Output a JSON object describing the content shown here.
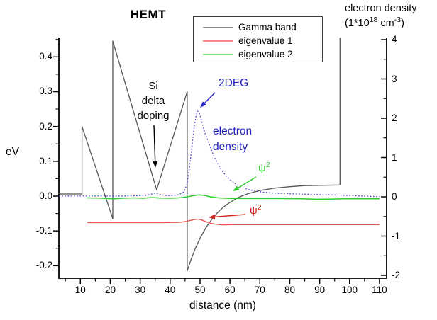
{
  "chart_data": {
    "type": "line",
    "title": "HEMT",
    "axes": {
      "bottom": {
        "label": "distance (nm)",
        "range": [
          2.8,
          112.4
        ],
        "major_ticks": [
          10,
          20,
          30,
          40,
          50,
          60,
          70,
          80,
          90,
          100,
          110
        ],
        "tick_labels": [
          "10",
          "20",
          "30",
          "40",
          "50",
          "60",
          "70",
          "80",
          "90",
          "100",
          "110"
        ]
      },
      "left": {
        "label": "eV",
        "range": [
          -0.236,
          0.456
        ],
        "major_ticks": [
          0.4,
          0.3,
          0.2,
          0.1,
          0.0,
          -0.1,
          -0.2
        ],
        "tick_labels": [
          "0.4",
          "0.3",
          "0.2",
          "0.1",
          "0.0",
          "-0.1",
          "-0.2"
        ]
      },
      "right": {
        "label_line1": "electron density",
        "label_parts": {
          "p1": "(1*10",
          "s1": "18",
          "p2": " cm",
          "s2": "-3",
          "p3": ")"
        },
        "range": [
          -2,
          4
        ],
        "major_ticks": [
          4,
          3,
          2,
          1,
          0,
          -1,
          -2
        ],
        "tick_labels": [
          "4",
          "3",
          "2",
          "1",
          "0",
          "-1",
          "-2"
        ]
      }
    },
    "series": [
      {
        "name": "Gamma band",
        "axis": "left",
        "color": "#565656",
        "style": "solid",
        "width": 1.3,
        "points": [
          [
            2.81,
            0.006
          ],
          [
            10.55,
            0.006
          ],
          [
            10.55,
            0.2
          ],
          [
            20.85,
            -0.065
          ],
          [
            20.85,
            0.445
          ],
          [
            35.5,
            0.018
          ],
          [
            45.72,
            0.3
          ],
          [
            45.72,
            -0.215
          ],
          [
            47,
            -0.182
          ],
          [
            48.5,
            -0.149
          ],
          [
            50,
            -0.121
          ],
          [
            52,
            -0.09
          ],
          [
            54,
            -0.066
          ],
          [
            56,
            -0.046
          ],
          [
            58,
            -0.03
          ],
          [
            60,
            -0.018
          ],
          [
            63,
            -0.003
          ],
          [
            66,
            0.007
          ],
          [
            70,
            0.016
          ],
          [
            75,
            0.023
          ],
          [
            80,
            0.027
          ],
          [
            85,
            0.03
          ],
          [
            90,
            0.031
          ],
          [
            96.8,
            0.032
          ],
          [
            96.8,
            0.455
          ]
        ]
      },
      {
        "name": "eigenvalue 1",
        "axis": "left",
        "color": "#e2544b",
        "style": "solid",
        "width": 1.4,
        "points": [
          [
            12.3,
            -0.076
          ],
          [
            25,
            -0.076
          ],
          [
            38,
            -0.076
          ],
          [
            43,
            -0.0755
          ],
          [
            45,
            -0.0735
          ],
          [
            46.5,
            -0.0705
          ],
          [
            48,
            -0.0675
          ],
          [
            49.2,
            -0.066
          ],
          [
            50.5,
            -0.0685
          ],
          [
            52,
            -0.0735
          ],
          [
            53.5,
            -0.078
          ],
          [
            55,
            -0.0805
          ],
          [
            56.5,
            -0.082
          ],
          [
            58,
            -0.0825
          ],
          [
            61,
            -0.082
          ],
          [
            70,
            -0.082
          ],
          [
            85,
            -0.082
          ],
          [
            100,
            -0.082
          ],
          [
            110,
            -0.082
          ]
        ]
      },
      {
        "name": "eigenvalue 2",
        "axis": "left",
        "color": "#2ecc2e",
        "style": "solid",
        "width": 1.5,
        "points": [
          [
            12,
            -0.005
          ],
          [
            16,
            -0.0055
          ],
          [
            19,
            -0.007
          ],
          [
            21,
            -0.008
          ],
          [
            24,
            -0.006
          ],
          [
            28,
            -0.005
          ],
          [
            31,
            -0.006
          ],
          [
            34,
            -0.004
          ],
          [
            36.5,
            -0.0055
          ],
          [
            40,
            -0.006
          ],
          [
            43,
            -0.005
          ],
          [
            45.5,
            -0.0025
          ],
          [
            47.5,
            0.001
          ],
          [
            49.5,
            0.0035
          ],
          [
            51.5,
            0.002
          ],
          [
            53.5,
            -0.002
          ],
          [
            56,
            -0.005
          ],
          [
            60,
            -0.0065
          ],
          [
            68,
            -0.007
          ],
          [
            76,
            -0.007
          ],
          [
            84,
            -0.0075
          ],
          [
            89,
            -0.009
          ],
          [
            93,
            -0.0085
          ],
          [
            98,
            -0.0075
          ],
          [
            104,
            -0.0075
          ],
          [
            110,
            -0.0075
          ]
        ]
      },
      {
        "name": "electron density (2DEG)",
        "axis": "right",
        "color": "#4040cc",
        "style": "dotted",
        "width": 1.3,
        "points": [
          [
            2.81,
            0.02
          ],
          [
            8,
            0.02
          ],
          [
            14,
            0.02
          ],
          [
            20,
            0.02
          ],
          [
            26,
            0.02
          ],
          [
            30,
            0.03
          ],
          [
            33,
            0.05
          ],
          [
            35,
            0.1
          ],
          [
            37,
            0.05
          ],
          [
            39,
            0.03
          ],
          [
            41,
            0.03
          ],
          [
            43,
            0.05
          ],
          [
            44.5,
            0.12
          ],
          [
            45.6,
            0.3
          ],
          [
            46.5,
            0.75
          ],
          [
            47.3,
            1.3
          ],
          [
            48,
            1.75
          ],
          [
            48.7,
            2.08
          ],
          [
            49.2,
            2.18
          ],
          [
            49.8,
            2.12
          ],
          [
            50.5,
            1.95
          ],
          [
            51.5,
            1.65
          ],
          [
            52.7,
            1.42
          ],
          [
            54,
            1.15
          ],
          [
            55,
            0.98
          ],
          [
            56,
            0.83
          ],
          [
            57.2,
            0.68
          ],
          [
            58.5,
            0.55
          ],
          [
            60,
            0.44
          ],
          [
            62,
            0.32
          ],
          [
            64,
            0.24
          ],
          [
            66,
            0.19
          ],
          [
            68,
            0.155
          ],
          [
            70.5,
            0.125
          ],
          [
            73,
            0.105
          ],
          [
            76,
            0.09
          ],
          [
            80,
            0.078
          ],
          [
            84,
            0.068
          ],
          [
            88,
            0.06
          ],
          [
            92,
            0.052
          ],
          [
            96,
            0.045
          ],
          [
            100,
            0.032
          ],
          [
            104,
            0.02
          ],
          [
            107,
            0.012
          ],
          [
            110,
            0.005
          ]
        ]
      }
    ],
    "grid": false,
    "legend_position": "top-center-inside"
  },
  "legend": {
    "items": [
      {
        "label": "Gamma band",
        "color": "#8a8a8a"
      },
      {
        "label": "eigenvalue 1",
        "color": "#ef8a80"
      },
      {
        "label": "eigenvalue 2",
        "color": "#7fdc7f"
      }
    ]
  },
  "annotations": {
    "si_doping": {
      "line1": "Si",
      "line2": "delta",
      "line3": "doping"
    },
    "deg": {
      "text": "2DEG"
    },
    "electron_density": {
      "line1": "electron",
      "line2": "density"
    },
    "psi_green": {
      "base": "ψ",
      "sup": "2"
    },
    "psi_red": {
      "base": "ψ",
      "sup": "2"
    }
  }
}
